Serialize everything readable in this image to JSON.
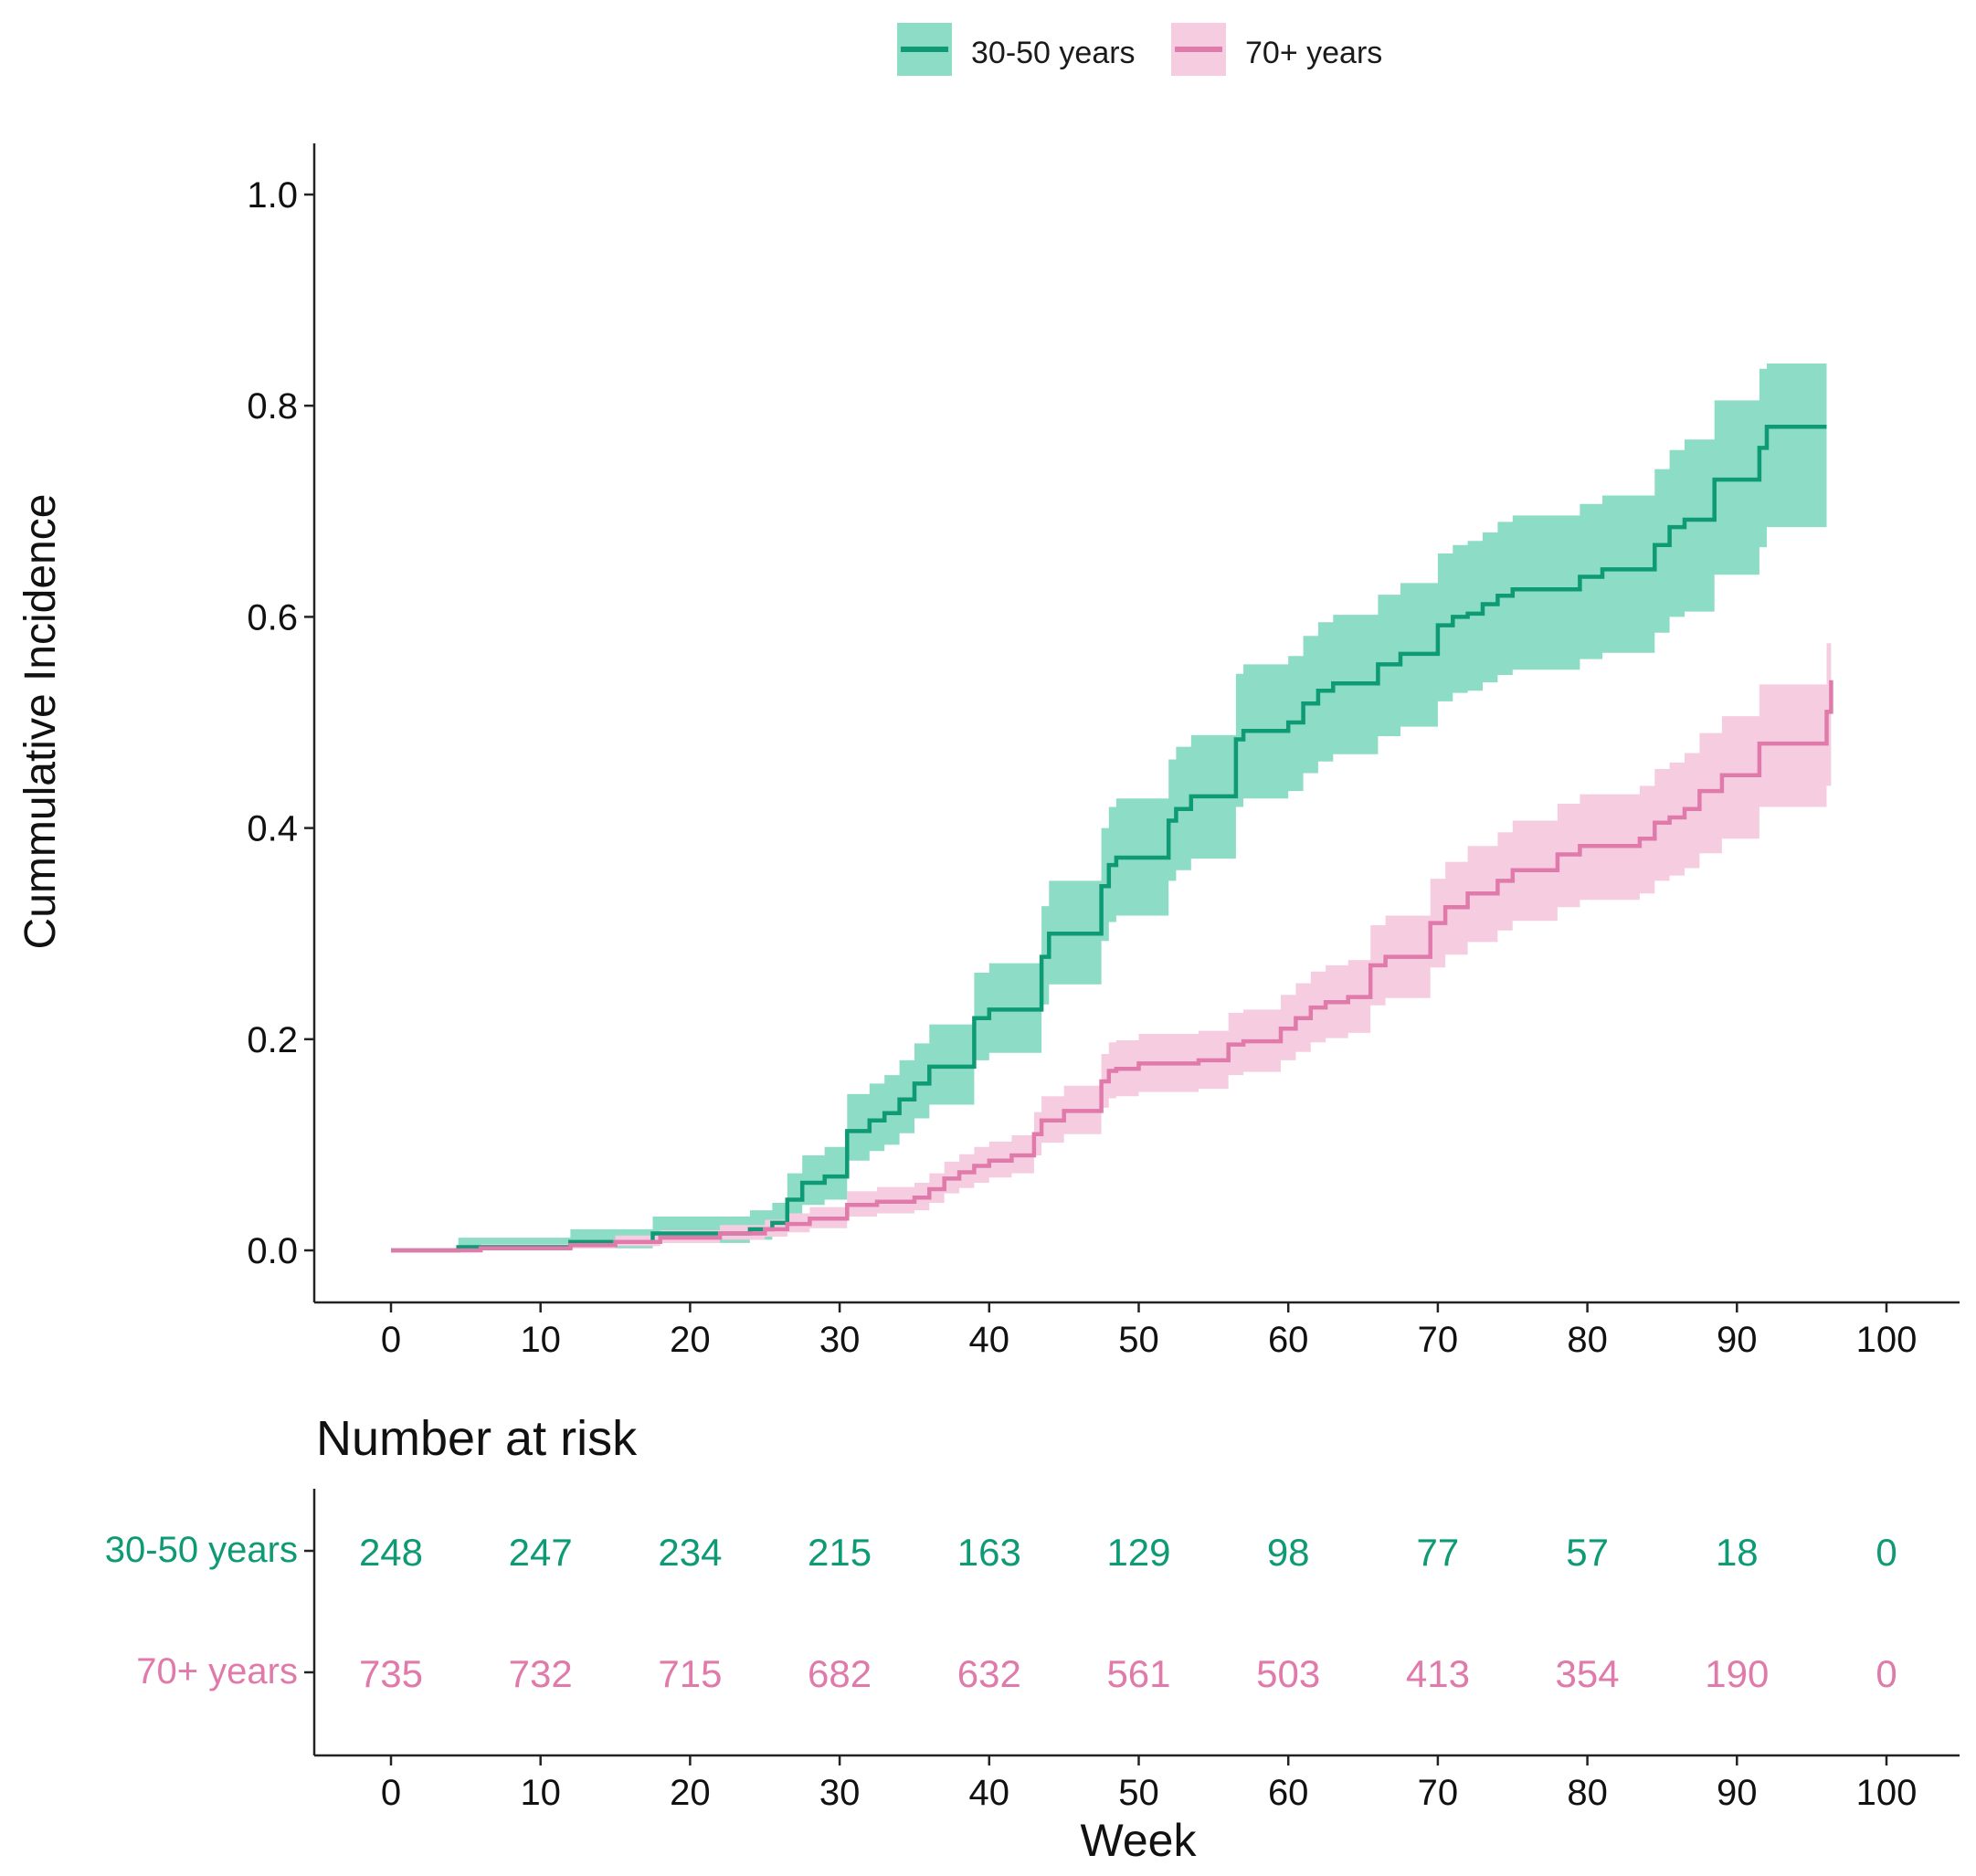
{
  "chart_data": {
    "type": "line",
    "subtype": "step cumulative incidence with confidence bands",
    "title": "",
    "xlabel": "",
    "ylabel": "Cummulative Incidence",
    "xlim": [
      0,
      100
    ],
    "ylim": [
      0,
      1.0
    ],
    "x_ticks": [
      "0",
      "10",
      "20",
      "30",
      "40",
      "50",
      "60",
      "70",
      "80",
      "90",
      "100"
    ],
    "y_ticks": [
      "0.0",
      "0.2",
      "0.4",
      "0.6",
      "0.8",
      "1.0"
    ],
    "grid": false,
    "legend_position": "top",
    "series": [
      {
        "name": "30-50 years",
        "color": "#0d9a74",
        "band_color": "#8ddcc6",
        "steps": [
          [
            0,
            0.0
          ],
          [
            4.5,
            0.003
          ],
          [
            12,
            0.008
          ],
          [
            17.5,
            0.016
          ],
          [
            24,
            0.02
          ],
          [
            25.5,
            0.026
          ],
          [
            26.5,
            0.048
          ],
          [
            27.5,
            0.064
          ],
          [
            29,
            0.07
          ],
          [
            30.5,
            0.113
          ],
          [
            32,
            0.123
          ],
          [
            33,
            0.13
          ],
          [
            34,
            0.143
          ],
          [
            35,
            0.158
          ],
          [
            36,
            0.174
          ],
          [
            39,
            0.22
          ],
          [
            40,
            0.228
          ],
          [
            43.5,
            0.278
          ],
          [
            44,
            0.3
          ],
          [
            47.5,
            0.345
          ],
          [
            48,
            0.365
          ],
          [
            48.5,
            0.372
          ],
          [
            52,
            0.407
          ],
          [
            52.5,
            0.418
          ],
          [
            53.5,
            0.43
          ],
          [
            56.5,
            0.484
          ],
          [
            57,
            0.492
          ],
          [
            60,
            0.5
          ],
          [
            61,
            0.518
          ],
          [
            62,
            0.53
          ],
          [
            63,
            0.537
          ],
          [
            66,
            0.555
          ],
          [
            67.5,
            0.565
          ],
          [
            70,
            0.592
          ],
          [
            71,
            0.6
          ],
          [
            72,
            0.603
          ],
          [
            73,
            0.612
          ],
          [
            74,
            0.62
          ],
          [
            75,
            0.626
          ],
          [
            79.5,
            0.638
          ],
          [
            81,
            0.645
          ],
          [
            84.5,
            0.668
          ],
          [
            85.5,
            0.685
          ],
          [
            86.5,
            0.692
          ],
          [
            88.5,
            0.73
          ],
          [
            91.5,
            0.76
          ],
          [
            92,
            0.78
          ],
          [
            96,
            0.78
          ]
        ],
        "lower": [
          [
            0,
            0.0
          ],
          [
            4.5,
            0.0
          ],
          [
            12,
            0.002
          ],
          [
            17.5,
            0.007
          ],
          [
            24,
            0.01
          ],
          [
            25.5,
            0.014
          ],
          [
            26.5,
            0.03
          ],
          [
            27.5,
            0.043
          ],
          [
            29,
            0.048
          ],
          [
            30.5,
            0.085
          ],
          [
            32,
            0.094
          ],
          [
            33,
            0.1
          ],
          [
            34,
            0.111
          ],
          [
            35,
            0.125
          ],
          [
            36,
            0.138
          ],
          [
            39,
            0.18
          ],
          [
            40,
            0.187
          ],
          [
            43.5,
            0.233
          ],
          [
            44,
            0.252
          ],
          [
            47.5,
            0.293
          ],
          [
            48,
            0.311
          ],
          [
            48.5,
            0.317
          ],
          [
            52,
            0.35
          ],
          [
            52.5,
            0.36
          ],
          [
            53.5,
            0.371
          ],
          [
            56.5,
            0.42
          ],
          [
            57,
            0.428
          ],
          [
            60,
            0.435
          ],
          [
            61,
            0.452
          ],
          [
            62,
            0.463
          ],
          [
            63,
            0.47
          ],
          [
            66,
            0.487
          ],
          [
            67.5,
            0.496
          ],
          [
            70,
            0.52
          ],
          [
            71,
            0.528
          ],
          [
            72,
            0.53
          ],
          [
            73,
            0.538
          ],
          [
            74,
            0.545
          ],
          [
            75,
            0.55
          ],
          [
            79.5,
            0.56
          ],
          [
            81,
            0.566
          ],
          [
            84.5,
            0.585
          ],
          [
            85.5,
            0.6
          ],
          [
            86.5,
            0.605
          ],
          [
            88.5,
            0.64
          ],
          [
            91.5,
            0.666
          ],
          [
            92,
            0.685
          ],
          [
            96,
            0.695
          ]
        ],
        "upper": [
          [
            0,
            0.0
          ],
          [
            4.5,
            0.012
          ],
          [
            12,
            0.02
          ],
          [
            17.5,
            0.032
          ],
          [
            24,
            0.038
          ],
          [
            25.5,
            0.045
          ],
          [
            26.5,
            0.073
          ],
          [
            27.5,
            0.09
          ],
          [
            29,
            0.098
          ],
          [
            30.5,
            0.148
          ],
          [
            32,
            0.158
          ],
          [
            33,
            0.166
          ],
          [
            34,
            0.18
          ],
          [
            35,
            0.196
          ],
          [
            36,
            0.214
          ],
          [
            39,
            0.263
          ],
          [
            40,
            0.272
          ],
          [
            43.5,
            0.326
          ],
          [
            44,
            0.35
          ],
          [
            47.5,
            0.4
          ],
          [
            48,
            0.42
          ],
          [
            48.5,
            0.428
          ],
          [
            52,
            0.465
          ],
          [
            52.5,
            0.477
          ],
          [
            53.5,
            0.488
          ],
          [
            56.5,
            0.546
          ],
          [
            57,
            0.555
          ],
          [
            60,
            0.563
          ],
          [
            61,
            0.582
          ],
          [
            62,
            0.595
          ],
          [
            63,
            0.602
          ],
          [
            66,
            0.621
          ],
          [
            67.5,
            0.632
          ],
          [
            70,
            0.66
          ],
          [
            71,
            0.668
          ],
          [
            72,
            0.672
          ],
          [
            73,
            0.68
          ],
          [
            74,
            0.69
          ],
          [
            75,
            0.696
          ],
          [
            79.5,
            0.707
          ],
          [
            81,
            0.715
          ],
          [
            84.5,
            0.74
          ],
          [
            85.5,
            0.758
          ],
          [
            86.5,
            0.768
          ],
          [
            88.5,
            0.805
          ],
          [
            91.5,
            0.835
          ],
          [
            92,
            0.84
          ],
          [
            96,
            0.84
          ]
        ]
      },
      {
        "name": "70+ years",
        "color": "#e07aaa",
        "band_color": "#f6cde0",
        "steps": [
          [
            0,
            0.0
          ],
          [
            6,
            0.002
          ],
          [
            12,
            0.005
          ],
          [
            15,
            0.008
          ],
          [
            18,
            0.012
          ],
          [
            22,
            0.016
          ],
          [
            25,
            0.02
          ],
          [
            26.5,
            0.025
          ],
          [
            28,
            0.03
          ],
          [
            30.5,
            0.043
          ],
          [
            32.5,
            0.046
          ],
          [
            35,
            0.05
          ],
          [
            36,
            0.058
          ],
          [
            37,
            0.068
          ],
          [
            38,
            0.074
          ],
          [
            39,
            0.08
          ],
          [
            40,
            0.085
          ],
          [
            41.5,
            0.09
          ],
          [
            43,
            0.11
          ],
          [
            43.5,
            0.123
          ],
          [
            45,
            0.132
          ],
          [
            47.5,
            0.16
          ],
          [
            48,
            0.17
          ],
          [
            48.5,
            0.172
          ],
          [
            50,
            0.177
          ],
          [
            54,
            0.18
          ],
          [
            56,
            0.195
          ],
          [
            57,
            0.198
          ],
          [
            59.5,
            0.21
          ],
          [
            60.5,
            0.22
          ],
          [
            61.5,
            0.23
          ],
          [
            62.5,
            0.235
          ],
          [
            64,
            0.24
          ],
          [
            65.5,
            0.27
          ],
          [
            66.5,
            0.278
          ],
          [
            69.5,
            0.31
          ],
          [
            70.5,
            0.325
          ],
          [
            72,
            0.338
          ],
          [
            74,
            0.35
          ],
          [
            75,
            0.36
          ],
          [
            78,
            0.375
          ],
          [
            79.5,
            0.383
          ],
          [
            83.5,
            0.39
          ],
          [
            84.5,
            0.405
          ],
          [
            85.5,
            0.41
          ],
          [
            86.5,
            0.418
          ],
          [
            87.5,
            0.435
          ],
          [
            89,
            0.45
          ],
          [
            91.5,
            0.48
          ],
          [
            96,
            0.51
          ],
          [
            96.3,
            0.54
          ]
        ],
        "lower": [
          [
            0,
            0.0
          ],
          [
            6,
            0.0
          ],
          [
            12,
            0.002
          ],
          [
            15,
            0.004
          ],
          [
            18,
            0.007
          ],
          [
            22,
            0.01
          ],
          [
            25,
            0.013
          ],
          [
            26.5,
            0.017
          ],
          [
            28,
            0.021
          ],
          [
            30.5,
            0.032
          ],
          [
            32.5,
            0.035
          ],
          [
            35,
            0.038
          ],
          [
            36,
            0.045
          ],
          [
            37,
            0.054
          ],
          [
            38,
            0.059
          ],
          [
            39,
            0.064
          ],
          [
            40,
            0.069
          ],
          [
            41.5,
            0.073
          ],
          [
            43,
            0.09
          ],
          [
            43.5,
            0.102
          ],
          [
            45,
            0.11
          ],
          [
            47.5,
            0.135
          ],
          [
            48,
            0.144
          ],
          [
            48.5,
            0.146
          ],
          [
            50,
            0.15
          ],
          [
            54,
            0.153
          ],
          [
            56,
            0.166
          ],
          [
            57,
            0.169
          ],
          [
            59.5,
            0.18
          ],
          [
            60.5,
            0.188
          ],
          [
            61.5,
            0.197
          ],
          [
            62.5,
            0.201
          ],
          [
            64,
            0.206
          ],
          [
            65.5,
            0.232
          ],
          [
            66.5,
            0.239
          ],
          [
            69.5,
            0.268
          ],
          [
            70.5,
            0.28
          ],
          [
            72,
            0.292
          ],
          [
            74,
            0.303
          ],
          [
            75,
            0.312
          ],
          [
            78,
            0.325
          ],
          [
            79.5,
            0.332
          ],
          [
            83.5,
            0.338
          ],
          [
            84.5,
            0.35
          ],
          [
            85.5,
            0.355
          ],
          [
            86.5,
            0.362
          ],
          [
            87.5,
            0.376
          ],
          [
            89,
            0.39
          ],
          [
            91.5,
            0.42
          ],
          [
            96,
            0.44
          ],
          [
            96.3,
            0.47
          ]
        ],
        "upper": [
          [
            0,
            0.0
          ],
          [
            6,
            0.006
          ],
          [
            12,
            0.01
          ],
          [
            15,
            0.014
          ],
          [
            18,
            0.019
          ],
          [
            22,
            0.024
          ],
          [
            25,
            0.029
          ],
          [
            26.5,
            0.035
          ],
          [
            28,
            0.041
          ],
          [
            30.5,
            0.056
          ],
          [
            32.5,
            0.06
          ],
          [
            35,
            0.064
          ],
          [
            36,
            0.073
          ],
          [
            37,
            0.084
          ],
          [
            38,
            0.091
          ],
          [
            39,
            0.098
          ],
          [
            40,
            0.103
          ],
          [
            41.5,
            0.109
          ],
          [
            43,
            0.131
          ],
          [
            43.5,
            0.146
          ],
          [
            45,
            0.156
          ],
          [
            47.5,
            0.186
          ],
          [
            48,
            0.197
          ],
          [
            48.5,
            0.199
          ],
          [
            50,
            0.205
          ],
          [
            54,
            0.208
          ],
          [
            56,
            0.225
          ],
          [
            57,
            0.228
          ],
          [
            59.5,
            0.242
          ],
          [
            60.5,
            0.253
          ],
          [
            61.5,
            0.264
          ],
          [
            62.5,
            0.27
          ],
          [
            64,
            0.275
          ],
          [
            65.5,
            0.308
          ],
          [
            66.5,
            0.317
          ],
          [
            69.5,
            0.352
          ],
          [
            70.5,
            0.368
          ],
          [
            72,
            0.383
          ],
          [
            74,
            0.396
          ],
          [
            75,
            0.407
          ],
          [
            78,
            0.423
          ],
          [
            79.5,
            0.432
          ],
          [
            83.5,
            0.44
          ],
          [
            84.5,
            0.456
          ],
          [
            85.5,
            0.462
          ],
          [
            86.5,
            0.471
          ],
          [
            87.5,
            0.49
          ],
          [
            89,
            0.506
          ],
          [
            91.5,
            0.536
          ],
          [
            96,
            0.575
          ],
          [
            96.3,
            0.61
          ]
        ]
      }
    ],
    "risk_table": {
      "title": "Number at risk",
      "xlabel": "Week",
      "x_ticks": [
        "0",
        "10",
        "20",
        "30",
        "40",
        "50",
        "60",
        "70",
        "80",
        "90",
        "100"
      ],
      "rows": [
        {
          "name": "30-50 years",
          "color": "#0d9a74",
          "values": [
            "248",
            "247",
            "234",
            "215",
            "163",
            "129",
            "98",
            "77",
            "57",
            "18",
            "0"
          ]
        },
        {
          "name": "70+ years",
          "color": "#e07aaa",
          "values": [
            "735",
            "732",
            "715",
            "682",
            "632",
            "561",
            "503",
            "413",
            "354",
            "190",
            "0"
          ]
        }
      ]
    }
  }
}
